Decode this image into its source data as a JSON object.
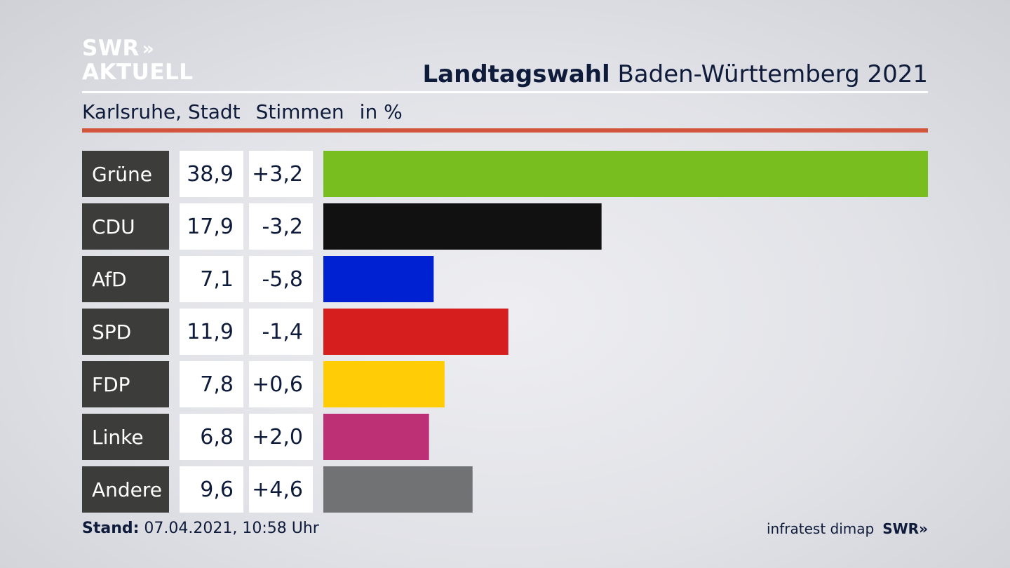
{
  "logo": {
    "line1": "SWR",
    "line2": "AKTUELL",
    "chevron": "»"
  },
  "header": {
    "title_bold": "Landtagswahl",
    "title_rest": "Baden-Württemberg 2021",
    "location": "Karlsruhe, Stadt",
    "measure": "Stimmen",
    "unit": "in %"
  },
  "footer": {
    "stand_label": "Stand:",
    "stand_value": "07.04.2021, 10:58 Uhr",
    "source": "infratest dimap",
    "brand": "SWR",
    "brand_chevron": "»"
  },
  "chart_data": {
    "type": "bar",
    "orientation": "horizontal",
    "categories": [
      "Grüne",
      "CDU",
      "AfD",
      "SPD",
      "FDP",
      "Linke",
      "Andere"
    ],
    "values": [
      38.9,
      17.9,
      7.1,
      11.9,
      7.8,
      6.8,
      9.6
    ],
    "value_labels": [
      "38,9",
      "17,9",
      "7,1",
      "11,9",
      "7,8",
      "6,8",
      "9,6"
    ],
    "changes": [
      3.2,
      -3.2,
      -5.8,
      -1.4,
      0.6,
      2.0,
      4.6
    ],
    "change_labels": [
      "+3,2",
      "-3,2",
      "-5,8",
      "-1,4",
      "+0,6",
      "+2,0",
      "+4,6"
    ],
    "colors": [
      "#78be1e",
      "#111111",
      "#0021d2",
      "#d61e1e",
      "#ffcc05",
      "#bd3075",
      "#717274"
    ],
    "xlim": [
      0,
      38.9
    ],
    "grid": false,
    "legend": "none"
  }
}
